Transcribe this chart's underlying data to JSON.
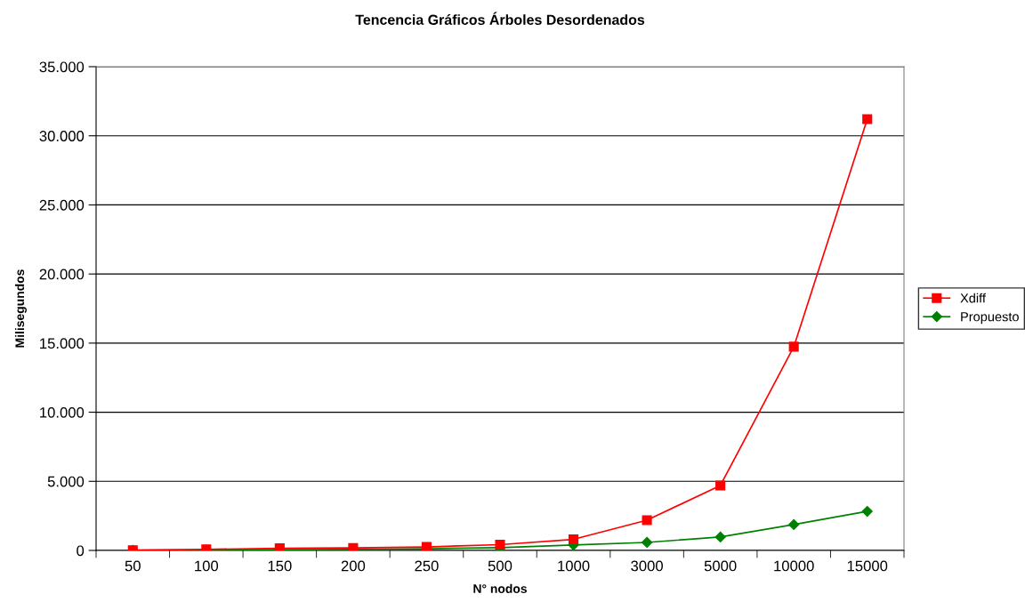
{
  "chart_data": {
    "type": "line",
    "title": "Tencencia Gráficos Árboles Desordenados",
    "xlabel": "N° nodos",
    "ylabel": "Milisegundos",
    "categories": [
      "50",
      "100",
      "150",
      "200",
      "250",
      "500",
      "1000",
      "3000",
      "5000",
      "10000",
      "15000"
    ],
    "series": [
      {
        "name": "Xdiff",
        "color": "#ff0000",
        "marker": "square",
        "values": [
          20,
          80,
          150,
          180,
          250,
          420,
          800,
          2190,
          4700,
          14740,
          31200
        ]
      },
      {
        "name": "Propuesto",
        "color": "#008000",
        "marker": "diamond",
        "values": [
          10,
          30,
          60,
          80,
          120,
          200,
          390,
          580,
          970,
          1870,
          2830
        ]
      }
    ],
    "ylim": [
      0,
      35000
    ],
    "yticks": [
      {
        "value": 0,
        "label": "0"
      },
      {
        "value": 5000,
        "label": "5.000"
      },
      {
        "value": 10000,
        "label": "10.000"
      },
      {
        "value": 15000,
        "label": "15.000"
      },
      {
        "value": 20000,
        "label": "20.000"
      },
      {
        "value": 25000,
        "label": "25.000"
      },
      {
        "value": 30000,
        "label": "30.000"
      },
      {
        "value": 35000,
        "label": "35.000"
      }
    ],
    "grid": "y",
    "legend": "right",
    "line_style": "solid"
  }
}
